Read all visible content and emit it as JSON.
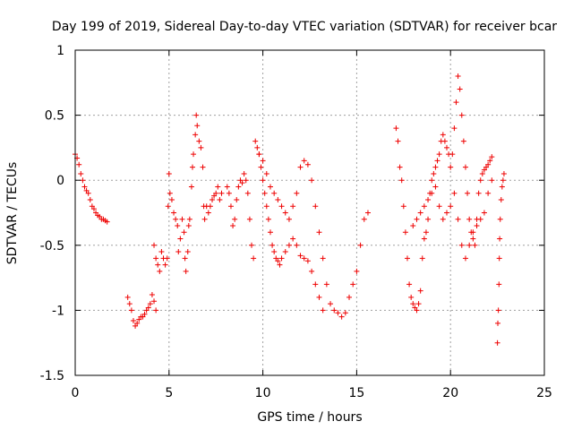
{
  "chart_data": {
    "type": "scatter",
    "title": "Day 199 of 2019, Sidereal Day-to-day VTEC variation (SDTVAR) for receiver bcar",
    "xlabel": "GPS time / hours",
    "ylabel": "SDTVAR / TECUs",
    "xlim": [
      0,
      25
    ],
    "ylim": [
      -1.5,
      1
    ],
    "xticks": [
      0,
      5,
      10,
      15,
      20,
      25
    ],
    "xtick_labels": [
      "0",
      "5",
      "10",
      "15",
      "20",
      "25"
    ],
    "yticks": [
      -1.5,
      -1,
      -0.5,
      0,
      0.5,
      1
    ],
    "ytick_labels": [
      "-1.5",
      "-1",
      "-0.5",
      "0",
      "0.5",
      "1"
    ],
    "grid": true,
    "marker": "plus",
    "color": "#ee0000",
    "segments": [
      [
        [
          0.0,
          0.2
        ],
        [
          0.1,
          0.17
        ],
        [
          0.2,
          0.12
        ],
        [
          0.3,
          0.05
        ],
        [
          0.4,
          0.0
        ],
        [
          0.5,
          -0.05
        ],
        [
          0.6,
          -0.08
        ],
        [
          0.7,
          -0.1
        ],
        [
          0.8,
          -0.15
        ],
        [
          0.9,
          -0.2
        ],
        [
          1.0,
          -0.22
        ],
        [
          1.1,
          -0.25
        ],
        [
          1.2,
          -0.27
        ],
        [
          1.3,
          -0.28
        ],
        [
          1.4,
          -0.3
        ],
        [
          1.5,
          -0.3
        ],
        [
          1.6,
          -0.31
        ],
        [
          1.7,
          -0.32
        ]
      ],
      [
        [
          2.8,
          -0.9
        ],
        [
          2.9,
          -0.95
        ],
        [
          3.0,
          -1.0
        ],
        [
          3.1,
          -1.08
        ],
        [
          3.2,
          -1.12
        ],
        [
          3.3,
          -1.1
        ],
        [
          3.4,
          -1.07
        ],
        [
          3.5,
          -1.05
        ],
        [
          3.6,
          -1.05
        ],
        [
          3.7,
          -1.03
        ],
        [
          3.8,
          -1.0
        ],
        [
          3.9,
          -0.98
        ],
        [
          4.0,
          -0.95
        ],
        [
          4.1,
          -0.88
        ],
        [
          4.2,
          -0.93
        ],
        [
          4.3,
          -1.0
        ]
      ],
      [
        [
          4.2,
          -0.5
        ],
        [
          4.3,
          -0.6
        ],
        [
          4.4,
          -0.65
        ],
        [
          4.5,
          -0.7
        ],
        [
          4.6,
          -0.55
        ],
        [
          4.7,
          -0.6
        ],
        [
          4.8,
          -0.65
        ],
        [
          4.9,
          -0.6
        ],
        [
          4.95,
          -0.2
        ],
        [
          5.0,
          0.05
        ],
        [
          5.05,
          -0.1
        ],
        [
          5.15,
          -0.15
        ],
        [
          5.25,
          -0.25
        ],
        [
          5.35,
          -0.3
        ],
        [
          5.45,
          -0.35
        ],
        [
          5.5,
          -0.55
        ],
        [
          5.6,
          -0.45
        ],
        [
          5.7,
          -0.3
        ],
        [
          5.8,
          -0.4
        ],
        [
          5.85,
          -0.6
        ],
        [
          5.9,
          -0.7
        ],
        [
          6.0,
          -0.55
        ],
        [
          6.05,
          -0.35
        ],
        [
          6.1,
          -0.3
        ],
        [
          6.2,
          -0.05
        ],
        [
          6.25,
          0.1
        ],
        [
          6.3,
          0.2
        ],
        [
          6.4,
          0.35
        ],
        [
          6.45,
          0.5
        ],
        [
          6.5,
          0.42
        ],
        [
          6.6,
          0.3
        ],
        [
          6.7,
          0.25
        ],
        [
          6.8,
          0.1
        ],
        [
          6.85,
          -0.2
        ],
        [
          6.9,
          -0.3
        ],
        [
          7.0,
          -0.2
        ],
        [
          7.1,
          -0.25
        ],
        [
          7.2,
          -0.2
        ],
        [
          7.3,
          -0.15
        ],
        [
          7.4,
          -0.12
        ],
        [
          7.5,
          -0.1
        ],
        [
          7.6,
          -0.05
        ],
        [
          7.7,
          -0.15
        ],
        [
          7.8,
          -0.1
        ]
      ],
      [
        [
          8.1,
          -0.05
        ],
        [
          8.2,
          -0.1
        ],
        [
          8.3,
          -0.2
        ],
        [
          8.4,
          -0.35
        ],
        [
          8.5,
          -0.3
        ],
        [
          8.6,
          -0.15
        ],
        [
          8.7,
          -0.05
        ],
        [
          8.8,
          0.0
        ],
        [
          8.9,
          -0.02
        ],
        [
          9.0,
          0.05
        ],
        [
          9.1,
          0.0
        ],
        [
          9.2,
          -0.1
        ],
        [
          9.3,
          -0.3
        ],
        [
          9.4,
          -0.5
        ],
        [
          9.5,
          -0.6
        ],
        [
          9.6,
          0.3
        ],
        [
          9.7,
          0.25
        ],
        [
          9.8,
          0.2
        ],
        [
          9.9,
          0.1
        ],
        [
          10.0,
          0.0
        ],
        [
          10.1,
          -0.1
        ],
        [
          10.2,
          -0.2
        ],
        [
          10.3,
          -0.3
        ],
        [
          10.4,
          -0.4
        ],
        [
          10.5,
          -0.5
        ],
        [
          10.6,
          -0.55
        ],
        [
          10.7,
          -0.6
        ],
        [
          10.8,
          -0.62
        ],
        [
          10.9,
          -0.65
        ],
        [
          11.0,
          -0.6
        ],
        [
          11.2,
          -0.55
        ],
        [
          11.4,
          -0.5
        ],
        [
          11.6,
          -0.45
        ],
        [
          11.8,
          -0.5
        ],
        [
          12.0,
          -0.58
        ],
        [
          12.2,
          -0.6
        ],
        [
          12.4,
          -0.62
        ],
        [
          12.6,
          -0.7
        ],
        [
          12.8,
          -0.8
        ],
        [
          13.0,
          -0.9
        ],
        [
          13.2,
          -1.0
        ]
      ],
      [
        [
          9.8,
          0.2
        ],
        [
          10.0,
          0.15
        ],
        [
          10.2,
          0.05
        ],
        [
          10.4,
          -0.05
        ],
        [
          10.6,
          -0.1
        ],
        [
          10.8,
          -0.15
        ],
        [
          11.0,
          -0.2
        ],
        [
          11.2,
          -0.25
        ],
        [
          11.4,
          -0.3
        ],
        [
          11.6,
          -0.2
        ],
        [
          11.8,
          -0.1
        ],
        [
          12.0,
          0.1
        ],
        [
          12.2,
          0.15
        ],
        [
          12.4,
          0.12
        ],
        [
          12.6,
          0.0
        ],
        [
          12.8,
          -0.2
        ],
        [
          13.0,
          -0.4
        ],
        [
          13.2,
          -0.6
        ],
        [
          13.4,
          -0.8
        ],
        [
          13.6,
          -0.95
        ],
        [
          13.8,
          -1.0
        ],
        [
          14.0,
          -1.02
        ],
        [
          14.2,
          -1.05
        ],
        [
          14.4,
          -1.02
        ],
        [
          14.6,
          -0.9
        ],
        [
          14.8,
          -0.8
        ],
        [
          15.0,
          -0.7
        ],
        [
          15.2,
          -0.5
        ],
        [
          15.4,
          -0.3
        ],
        [
          15.6,
          -0.25
        ]
      ],
      [
        [
          17.1,
          0.4
        ],
        [
          17.2,
          0.3
        ],
        [
          17.3,
          0.1
        ],
        [
          17.4,
          0.0
        ],
        [
          17.5,
          -0.2
        ],
        [
          17.6,
          -0.4
        ],
        [
          17.7,
          -0.6
        ],
        [
          17.8,
          -0.8
        ],
        [
          17.9,
          -0.9
        ],
        [
          18.0,
          -0.95
        ],
        [
          18.1,
          -0.98
        ],
        [
          18.2,
          -1.0
        ],
        [
          18.3,
          -0.95
        ],
        [
          18.4,
          -0.85
        ],
        [
          18.5,
          -0.6
        ],
        [
          18.6,
          -0.45
        ],
        [
          18.7,
          -0.4
        ],
        [
          18.8,
          -0.3
        ],
        [
          18.9,
          -0.1
        ],
        [
          19.0,
          0.0
        ],
        [
          19.1,
          0.05
        ],
        [
          19.2,
          0.1
        ],
        [
          19.3,
          0.15
        ],
        [
          19.4,
          0.2
        ],
        [
          19.5,
          0.3
        ],
        [
          19.6,
          0.35
        ],
        [
          19.7,
          0.3
        ],
        [
          19.8,
          0.25
        ],
        [
          19.9,
          0.2
        ],
        [
          20.0,
          0.1
        ],
        [
          20.1,
          0.2
        ],
        [
          20.2,
          0.4
        ],
        [
          20.3,
          0.6
        ],
        [
          20.4,
          0.8
        ],
        [
          20.5,
          0.7
        ],
        [
          20.6,
          0.5
        ],
        [
          20.7,
          0.3
        ],
        [
          20.8,
          0.1
        ],
        [
          20.9,
          -0.1
        ],
        [
          21.0,
          -0.3
        ],
        [
          21.1,
          -0.4
        ],
        [
          21.2,
          -0.45
        ],
        [
          21.3,
          -0.5
        ],
        [
          21.4,
          -0.3
        ],
        [
          21.5,
          -0.1
        ],
        [
          21.6,
          0.0
        ],
        [
          21.7,
          0.05
        ],
        [
          21.8,
          0.08
        ],
        [
          21.9,
          0.1
        ],
        [
          22.0,
          0.12
        ],
        [
          22.1,
          0.15
        ],
        [
          22.2,
          0.18
        ]
      ],
      [
        [
          18.0,
          -0.35
        ],
        [
          18.2,
          -0.3
        ],
        [
          18.4,
          -0.25
        ],
        [
          18.6,
          -0.2
        ],
        [
          18.8,
          -0.15
        ],
        [
          19.0,
          -0.1
        ],
        [
          19.2,
          -0.05
        ],
        [
          19.4,
          -0.2
        ],
        [
          19.6,
          -0.3
        ],
        [
          19.8,
          -0.25
        ],
        [
          20.0,
          -0.2
        ],
        [
          20.2,
          -0.1
        ],
        [
          20.4,
          -0.3
        ],
        [
          20.6,
          -0.5
        ],
        [
          20.8,
          -0.6
        ],
        [
          21.0,
          -0.5
        ],
        [
          21.2,
          -0.4
        ],
        [
          21.4,
          -0.35
        ],
        [
          21.6,
          -0.3
        ],
        [
          21.8,
          -0.25
        ],
        [
          22.0,
          -0.1
        ],
        [
          22.2,
          0.0
        ]
      ],
      [
        [
          22.5,
          -1.25
        ],
        [
          22.52,
          -1.1
        ],
        [
          22.55,
          -1.0
        ],
        [
          22.58,
          -0.8
        ],
        [
          22.6,
          -0.6
        ],
        [
          22.62,
          -0.45
        ],
        [
          22.65,
          -0.3
        ],
        [
          22.7,
          -0.15
        ],
        [
          22.75,
          -0.05
        ],
        [
          22.8,
          0.0
        ],
        [
          22.85,
          0.05
        ]
      ]
    ]
  }
}
